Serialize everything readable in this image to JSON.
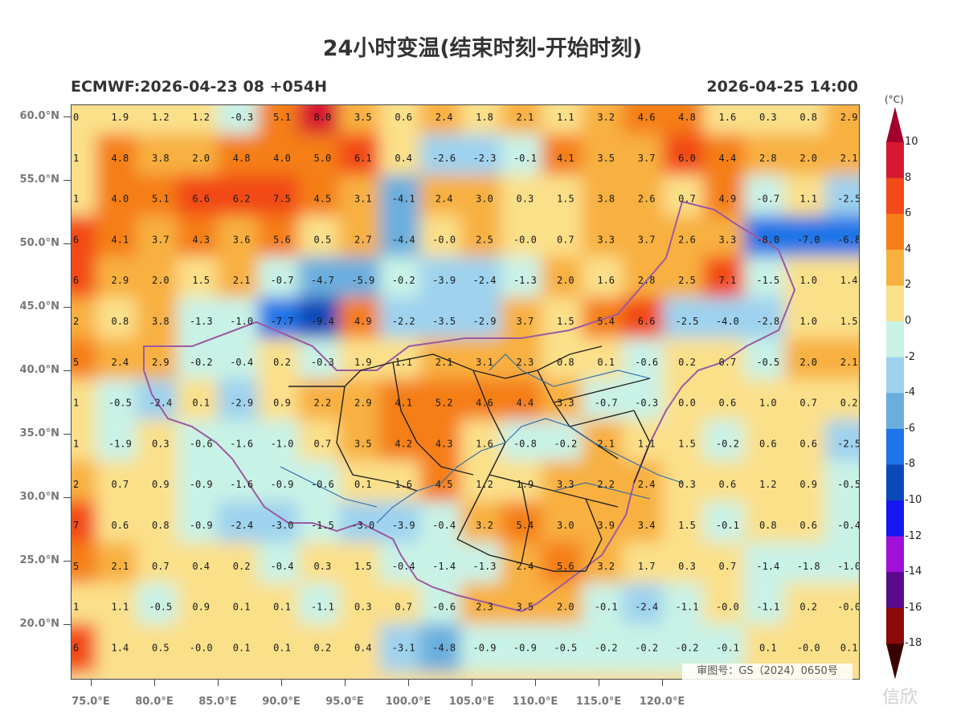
{
  "title": "24小时变温(结束时刻-开始时刻)",
  "subtitle_left": "ECMWF:2026-04-23 08 +054H",
  "subtitle_right": "2026-04-25 14:00",
  "approval_number": "审图号：GS（2024）0650号",
  "watermark": "信欣",
  "colorbar": {
    "unit": "(°C)",
    "levels": [
      "10",
      "8",
      "6",
      "4",
      "2",
      "0",
      "-2",
      "-4",
      "-6",
      "-8",
      "-10",
      "-12",
      "-14",
      "-16",
      "-18"
    ],
    "colors": [
      "#a0002a",
      "#d81830",
      "#f24a18",
      "#f57e18",
      "#f8b040",
      "#fbe08a",
      "#c9f2e6",
      "#9ed2ee",
      "#6aaede",
      "#1e74e8",
      "#0a4ab8",
      "#1616f0",
      "#a010d8",
      "#5a0a8c",
      "#8c0a0a",
      "#3a0000"
    ]
  },
  "axes": {
    "y_labels": [
      "60.0°N",
      "55.0°N",
      "50.0°N",
      "45.0°N",
      "40.0°N",
      "35.0°N",
      "30.0°N",
      "25.0°N",
      "20.0°N"
    ],
    "x_labels": [
      "75.0°E",
      "80.0°E",
      "85.0°E",
      "90.0°E",
      "95.0°E",
      "100.0°E",
      "105.0°E",
      "110.0°E",
      "115.0°E",
      "120.0°E"
    ]
  },
  "grid_values": [
    [
      "0",
      "1.9",
      "1.2",
      "1.2",
      "-0.3",
      "5.1",
      "8.0",
      "3.5",
      "0.6",
      "2.4",
      "1.8",
      "2.1",
      "1.1",
      "3.2",
      "4.6",
      "4.8",
      "1.6",
      "0.3",
      "0.8",
      "2.9"
    ],
    [
      "1",
      "4.8",
      "3.8",
      "2.0",
      "4.8",
      "4.0",
      "5.0",
      "6.1",
      "0.4",
      "-2.6",
      "-2.3",
      "-0.1",
      "4.1",
      "3.5",
      "3.7",
      "6.0",
      "4.4",
      "2.8",
      "2.0",
      "2.1"
    ],
    [
      "1",
      "4.0",
      "5.1",
      "6.6",
      "6.2",
      "7.5",
      "4.5",
      "3.1",
      "-4.1",
      "2.4",
      "3.0",
      "0.3",
      "1.5",
      "3.8",
      "2.6",
      "0.7",
      "4.9",
      "-0.7",
      "1.1",
      "-2.5"
    ],
    [
      "6",
      "4.1",
      "3.7",
      "4.3",
      "3.6",
      "5.6",
      "0.5",
      "2.7",
      "-4.4",
      "-0.0",
      "2.5",
      "-0.0",
      "0.7",
      "3.3",
      "3.7",
      "2.6",
      "3.3",
      "-8.0",
      "-7.0",
      "-6.8"
    ],
    [
      "6",
      "2.9",
      "2.0",
      "1.5",
      "2.1",
      "-0.7",
      "-4.7",
      "-5.9",
      "-0.2",
      "-3.9",
      "-2.4",
      "-1.3",
      "2.0",
      "1.6",
      "2.8",
      "2.5",
      "7.1",
      "-1.5",
      "1.0",
      "1.4"
    ],
    [
      "2",
      "0.8",
      "3.8",
      "-1.3",
      "-1.0",
      "-7.7",
      "-9.4",
      "4.9",
      "-2.2",
      "-3.5",
      "-2.9",
      "3.7",
      "1.5",
      "5.4",
      "6.6",
      "-2.5",
      "-4.0",
      "-2.8",
      "1.0",
      "1.5"
    ],
    [
      "5",
      "2.4",
      "2.9",
      "-0.2",
      "-0.4",
      "0.2",
      "-0.3",
      "1.9",
      "1.1",
      "2.1",
      "3.1",
      "2.3",
      "0.8",
      "0.1",
      "-0.6",
      "0.2",
      "0.7",
      "-0.5",
      "2.0",
      "2.1"
    ],
    [
      "1",
      "-0.5",
      "-2.4",
      "0.1",
      "-2.9",
      "0.9",
      "2.2",
      "2.9",
      "4.1",
      "5.2",
      "4.6",
      "4.4",
      "3.3",
      "-0.7",
      "-0.3",
      "0.0",
      "0.6",
      "1.0",
      "0.7",
      "0.2"
    ],
    [
      "1",
      "-1.9",
      "0.3",
      "-0.6",
      "-1.6",
      "-1.0",
      "0.7",
      "3.5",
      "4.2",
      "4.3",
      "1.6",
      "-0.8",
      "-0.2",
      "2.1",
      "1.1",
      "1.5",
      "-0.2",
      "0.6",
      "0.6",
      "-2.5"
    ],
    [
      "2",
      "0.7",
      "0.9",
      "-0.9",
      "-1.6",
      "-0.9",
      "-0.6",
      "0.1",
      "1.6",
      "4.5",
      "1.2",
      "1.9",
      "3.3",
      "2.2",
      "2.4",
      "0.3",
      "0.6",
      "1.2",
      "0.9",
      "-0.5"
    ],
    [
      "7",
      "0.6",
      "0.8",
      "-0.9",
      "-2.4",
      "-3.0",
      "-1.5",
      "-3.0",
      "-3.9",
      "-0.4",
      "3.2",
      "5.4",
      "3.0",
      "3.9",
      "3.4",
      "1.5",
      "-0.1",
      "0.8",
      "0.6",
      "-0.4"
    ],
    [
      "5",
      "2.1",
      "0.7",
      "0.4",
      "0.2",
      "-0.4",
      "0.3",
      "1.5",
      "-0.4",
      "-1.4",
      "-1.3",
      "2.4",
      "5.6",
      "3.2",
      "1.7",
      "0.3",
      "0.7",
      "-1.4",
      "-1.8",
      "-1.0"
    ],
    [
      "1",
      "1.1",
      "-0.5",
      "0.9",
      "0.1",
      "0.1",
      "-1.1",
      "0.3",
      "0.7",
      "-0.6",
      "2.3",
      "3.5",
      "2.0",
      "-0.1",
      "-2.4",
      "-1.1",
      "-0.0",
      "-1.1",
      "0.2",
      "-0.0"
    ],
    [
      "6",
      "1.4",
      "0.5",
      "-0.0",
      "0.1",
      "0.1",
      "0.2",
      "0.4",
      "-3.1",
      "-4.8",
      "-0.9",
      "-0.9",
      "-0.5",
      "-0.2",
      "-0.2",
      "-0.2",
      "-0.1",
      "0.1",
      "-0.0",
      "0.1"
    ]
  ]
}
